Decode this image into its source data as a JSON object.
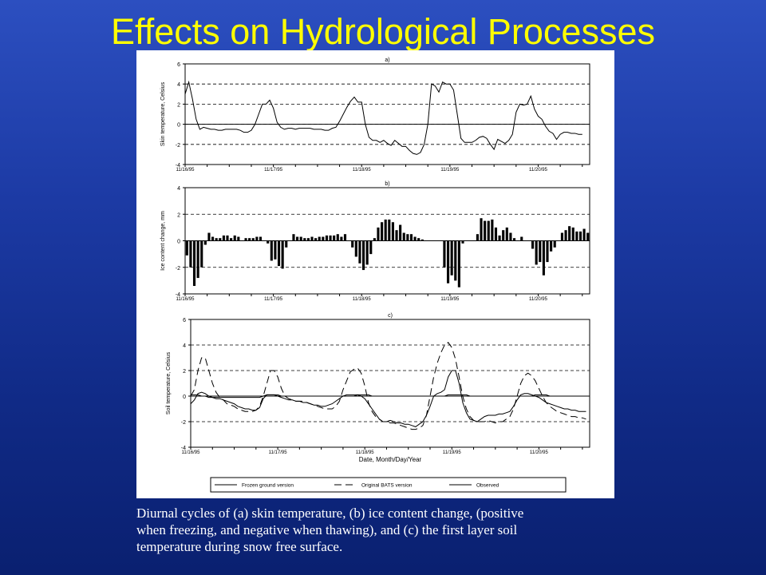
{
  "slide": {
    "title": "Effects on Hydrological Processes",
    "caption_lines": [
      "Diurnal cycles of (a) skin temperature, (b) ice content change, (positive",
      "when freezing, and negative when thawing), and (c) the first layer soil",
      "temperature during snow free surface."
    ]
  },
  "chart_data": [
    {
      "type": "line",
      "title": "a)",
      "ylabel": "Skin temperature, Celsius",
      "xlabel": "",
      "ylim": [
        -4,
        6
      ],
      "yticks": [
        -4,
        -2,
        0,
        2,
        4,
        6
      ],
      "xlim": [
        0,
        110
      ],
      "xtick_positions": [
        0,
        24,
        48,
        72,
        96
      ],
      "xtick_labels": [
        "11/16/95",
        "11/17/95",
        "11/18/95",
        "11/19/95",
        "11/20/95"
      ],
      "grid": "dashed horizontal",
      "series": [
        {
          "style": "solid",
          "values": [
            3.0,
            4.2,
            2.5,
            0.5,
            -0.5,
            -0.3,
            -0.4,
            -0.5,
            -0.5,
            -0.6,
            -0.6,
            -0.5,
            -0.5,
            -0.5,
            -0.5,
            -0.6,
            -0.8,
            -0.8,
            -0.6,
            0.0,
            1.0,
            2.0,
            2.0,
            2.4,
            1.6,
            0.2,
            -0.3,
            -0.5,
            -0.4,
            -0.4,
            -0.5,
            -0.4,
            -0.4,
            -0.4,
            -0.4,
            -0.5,
            -0.5,
            -0.5,
            -0.6,
            -0.6,
            -0.4,
            -0.3,
            0.3,
            1.0,
            1.7,
            2.3,
            2.7,
            2.2,
            2.2,
            0.0,
            -1.3,
            -1.6,
            -1.6,
            -1.8,
            -1.6,
            -1.9,
            -2.1,
            -1.6,
            -1.9,
            -2.2,
            -2.2,
            -2.6,
            -2.9,
            -3.0,
            -2.8,
            -2.0,
            0.0,
            4.0,
            3.8,
            3.2,
            4.2,
            4.0,
            4.0,
            3.4,
            1.0,
            -1.4,
            -1.8,
            -1.8,
            -1.8,
            -1.6,
            -1.3,
            -1.2,
            -1.4,
            -2.0,
            -2.5,
            -1.5,
            -1.7,
            -1.9,
            -1.6,
            -1.0,
            1.2,
            2.0,
            1.9,
            2.0,
            2.8,
            1.5,
            0.8,
            0.5,
            -0.2,
            -0.7,
            -0.9,
            -1.5,
            -1.0,
            -0.8,
            -0.8,
            -0.9,
            -0.9,
            -1.0,
            -1.0
          ]
        }
      ]
    },
    {
      "type": "bar",
      "title": "b)",
      "ylabel": "Ice content change, mm",
      "xlabel": "",
      "ylim": [
        -4,
        4
      ],
      "yticks": [
        -4,
        -2,
        0,
        2,
        4
      ],
      "xlim": [
        0,
        110
      ],
      "xtick_positions": [
        0,
        24,
        48,
        72,
        96
      ],
      "xtick_labels": [
        "11/16/95",
        "11/17/95",
        "11/18/95",
        "11/19/95",
        "11/20/95"
      ],
      "grid": "dashed horizontal",
      "values": [
        -1.1,
        -2.0,
        -3.4,
        -2.8,
        -2.0,
        -0.3,
        0.6,
        0.3,
        0.2,
        0.2,
        0.4,
        0.4,
        0.2,
        0.4,
        0.3,
        0.0,
        0.2,
        0.2,
        0.2,
        0.3,
        0.3,
        0.0,
        -0.2,
        -1.5,
        -1.4,
        -1.9,
        -2.1,
        -0.5,
        0.0,
        0.5,
        0.3,
        0.3,
        0.2,
        0.2,
        0.3,
        0.2,
        0.3,
        0.3,
        0.4,
        0.4,
        0.4,
        0.5,
        0.3,
        0.5,
        0.0,
        -0.5,
        -1.2,
        -1.7,
        -2.2,
        -1.8,
        -1.0,
        0.2,
        1.0,
        1.4,
        1.6,
        1.6,
        1.4,
        0.8,
        1.2,
        0.6,
        0.5,
        0.5,
        0.3,
        0.2,
        0.1,
        0.0,
        0.0,
        0.0,
        0.0,
        0.0,
        -2.0,
        -3.2,
        -2.6,
        -3.0,
        -3.5,
        -0.2,
        0.0,
        0.0,
        0.0,
        0.5,
        1.7,
        1.5,
        1.5,
        1.6,
        1.0,
        0.4,
        0.8,
        1.0,
        0.6,
        0.2,
        0.0,
        0.3,
        0.0,
        0.0,
        -0.6,
        -1.8,
        -1.6,
        -2.6,
        -1.6,
        -0.8,
        -0.5,
        0.0,
        0.6,
        0.8,
        1.1,
        1.0,
        0.7,
        0.7,
        0.9,
        0.6
      ]
    },
    {
      "type": "line",
      "title": "c)",
      "ylabel": "Soil temperature, Celsius",
      "xlabel": "Date, Month/Day/Year",
      "ylim": [
        -4,
        6
      ],
      "yticks": [
        -4,
        -2,
        0,
        2,
        4,
        6
      ],
      "xlim": [
        0,
        110
      ],
      "xtick_positions": [
        0,
        24,
        48,
        72,
        96
      ],
      "xtick_labels": [
        "11/16/95",
        "11/17/95",
        "11/18/95",
        "11/19/95",
        "11/20/95"
      ],
      "grid": "dashed horizontal",
      "legend_position": "bottom",
      "series": [
        {
          "name": "Frozen ground version",
          "style": "solid",
          "values": [
            0.1,
            0.1,
            0.1,
            0.0,
            0.0,
            -0.1,
            -0.1,
            -0.1,
            -0.1,
            -0.1,
            -0.1,
            -0.1,
            -0.1,
            -0.1,
            -0.1,
            -0.1,
            -0.1,
            -0.1,
            -0.1,
            -0.1,
            0.0,
            0.1,
            0.1,
            0.1,
            0.1,
            0.0,
            0.0,
            0.0,
            0.0,
            0.0,
            0.0,
            0.0,
            0.0,
            0.0,
            0.0,
            0.0,
            0.0,
            0.0,
            0.0,
            0.0,
            0.0,
            0.0,
            0.0,
            0.0,
            0.0,
            0.0,
            0.1,
            0.1,
            0.1,
            0.1,
            0.0,
            0.0,
            0.0,
            0.0,
            0.0,
            0.0,
            0.0,
            0.0,
            0.0,
            0.0,
            0.0,
            0.0,
            0.0,
            0.0,
            0.0,
            0.0,
            0.0,
            0.0,
            0.0,
            0.0,
            0.0,
            0.1,
            0.1,
            0.1,
            0.1,
            0.1,
            0.1,
            0.0,
            0.0,
            0.0,
            0.0,
            0.0,
            0.0,
            0.0,
            0.0,
            0.0,
            0.0,
            0.0,
            0.0,
            0.0,
            0.0,
            0.0,
            0.0,
            0.0,
            0.0,
            0.1,
            0.1,
            0.1,
            0.1,
            0.0,
            0.0,
            0.0,
            0.0,
            0.0,
            0.0,
            0.0,
            0.0,
            0.0,
            0.0,
            0.0
          ]
        },
        {
          "name": "Original BATS version",
          "style": "dashed",
          "values": [
            0.0,
            0.5,
            2.0,
            3.0,
            3.0,
            2.0,
            1.0,
            0.3,
            -0.1,
            -0.3,
            -0.6,
            -0.7,
            -0.8,
            -1.0,
            -1.1,
            -1.2,
            -1.2,
            -1.2,
            -1.1,
            -0.8,
            0.0,
            1.0,
            2.0,
            2.0,
            1.5,
            0.6,
            0.0,
            -0.2,
            -0.3,
            -0.4,
            -0.4,
            -0.4,
            -0.5,
            -0.6,
            -0.7,
            -0.8,
            -0.9,
            -1.0,
            -1.0,
            -1.0,
            -0.8,
            -0.4,
            0.5,
            1.2,
            1.9,
            2.1,
            2.2,
            1.8,
            0.8,
            -0.5,
            -1.2,
            -1.6,
            -1.8,
            -2.0,
            -2.0,
            -2.1,
            -2.1,
            -2.2,
            -2.3,
            -2.4,
            -2.5,
            -2.6,
            -2.6,
            -2.5,
            -2.3,
            -1.5,
            0.0,
            1.5,
            2.6,
            3.4,
            4.0,
            4.2,
            3.8,
            2.9,
            1.5,
            0.0,
            -1.0,
            -1.6,
            -1.9,
            -2.0,
            -2.0,
            -2.0,
            -1.9,
            -2.0,
            -2.1,
            -2.0,
            -2.0,
            -1.8,
            -1.6,
            -1.0,
            0.0,
            1.0,
            1.6,
            1.8,
            1.6,
            1.2,
            0.6,
            0.0,
            -0.5,
            -0.8,
            -1.0,
            -1.2,
            -1.3,
            -1.4,
            -1.5,
            -1.6,
            -1.6,
            -1.7,
            -1.7,
            -1.8
          ]
        },
        {
          "name": "Observed",
          "style": "solid",
          "values": [
            -0.6,
            -0.3,
            0.2,
            0.3,
            0.2,
            0.0,
            -0.1,
            -0.2,
            -0.2,
            -0.3,
            -0.4,
            -0.5,
            -0.6,
            -0.8,
            -0.9,
            -1.0,
            -1.0,
            -1.1,
            -1.1,
            -0.9,
            -0.2,
            0.1,
            0.1,
            0.1,
            0.0,
            -0.1,
            -0.2,
            -0.3,
            -0.3,
            -0.4,
            -0.4,
            -0.5,
            -0.5,
            -0.6,
            -0.7,
            -0.7,
            -0.8,
            -0.8,
            -0.7,
            -0.6,
            -0.4,
            -0.2,
            0.0,
            0.1,
            0.1,
            0.1,
            0.1,
            0.0,
            -0.2,
            -0.6,
            -1.0,
            -1.4,
            -1.8,
            -2.0,
            -2.0,
            -1.9,
            -2.0,
            -2.1,
            -2.1,
            -2.2,
            -2.2,
            -2.3,
            -2.4,
            -2.2,
            -2.0,
            -1.5,
            -0.8,
            0.0,
            0.2,
            0.3,
            0.5,
            1.5,
            2.0,
            2.0,
            1.0,
            -0.5,
            -1.3,
            -1.8,
            -1.9,
            -2.0,
            -1.8,
            -1.6,
            -1.5,
            -1.5,
            -1.5,
            -1.4,
            -1.4,
            -1.3,
            -1.2,
            -0.8,
            -0.3,
            0.1,
            0.2,
            0.2,
            0.1,
            0.0,
            -0.1,
            -0.3,
            -0.5,
            -0.6,
            -0.7,
            -0.8,
            -0.9,
            -1.0,
            -1.0,
            -1.1,
            -1.1,
            -1.2,
            -1.2,
            -1.2
          ]
        }
      ]
    }
  ]
}
